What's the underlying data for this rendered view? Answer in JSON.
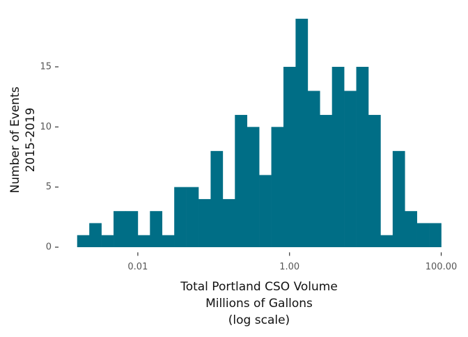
{
  "chart_data": {
    "type": "histogram",
    "x_label": [
      "Total Portland CSO Volume",
      "Millions of Gallons",
      "(log scale)"
    ],
    "y_label": [
      "Number of Events",
      "2015-2019"
    ],
    "bins": [
      0.001585,
      0.002291,
      0.003311,
      0.004786,
      0.006918,
      0.01,
      0.01445,
      0.02089,
      0.0302,
      0.04365,
      0.0631,
      0.0912,
      0.1318,
      0.1905,
      0.2754,
      0.3981,
      0.5754,
      0.8318,
      1.2023,
      1.7378,
      2.5119,
      3.6308,
      5.2481,
      7.5858,
      10.965,
      15.849,
      22.909,
      33.113,
      47.863,
      69.183,
      100
    ],
    "counts": [
      1,
      2,
      1,
      3,
      3,
      1,
      3,
      1,
      5,
      5,
      4,
      8,
      4,
      11,
      10,
      6,
      10,
      15,
      19,
      13,
      11,
      15,
      13,
      15,
      11,
      1,
      8,
      3,
      2,
      2
    ],
    "color": "#006e86",
    "x_log": true,
    "xlim": [
      0.0009,
      175
    ],
    "xticks": [
      {
        "value": 0.01,
        "label": "0.01"
      },
      {
        "value": 1,
        "label": "1.00"
      },
      {
        "value": 100,
        "label": "100.00"
      }
    ],
    "ylim": [
      -0.95,
      19.95
    ],
    "yticks": [
      0,
      5,
      10,
      15
    ],
    "grid": false
  }
}
